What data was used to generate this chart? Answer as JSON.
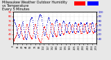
{
  "title_line1": "Milwaukee Weather Outdoor Humidity",
  "title_line2": "vs Temperature",
  "title_line3": "Every 5 Minutes",
  "title_fontsize": 3.5,
  "background_color": "#e8e8e8",
  "plot_bg_color": "#ffffff",
  "temp_color": "#ff0000",
  "humidity_color": "#0000cc",
  "marker_size": 0.6,
  "tick_fontsize": 2.8,
  "grid_color": "#bbbbbb",
  "ylim_temp": [
    20,
    90
  ],
  "ylim_humidity": [
    30,
    100
  ],
  "temp_yticks": [
    30,
    40,
    50,
    60,
    70,
    80,
    90
  ],
  "humidity_yticks": [
    40,
    50,
    60,
    70,
    80,
    90,
    100
  ],
  "legend_temp_color": "#ff0000",
  "legend_humidity_color": "#0000ff",
  "temp_data": [
    25,
    26,
    27,
    28,
    30,
    32,
    34,
    35,
    36,
    38,
    40,
    42,
    44,
    46,
    50,
    54,
    58,
    60,
    62,
    63,
    62,
    60,
    57,
    54,
    51,
    48,
    45,
    42,
    40,
    38,
    36,
    34,
    32,
    30,
    28,
    30,
    33,
    36,
    40,
    44,
    48,
    52,
    56,
    59,
    62,
    63,
    62,
    60,
    57,
    54,
    50,
    47,
    44,
    42,
    40,
    38,
    36,
    35,
    34,
    33,
    32,
    31,
    30,
    32,
    35,
    38,
    42,
    46,
    50,
    54,
    57,
    60,
    62,
    63,
    62,
    60,
    57,
    54,
    50,
    46,
    42,
    38,
    35,
    32,
    30,
    28,
    27,
    26,
    25,
    24,
    23,
    22,
    23,
    25,
    28,
    32,
    36,
    40,
    44,
    48,
    52,
    55,
    57,
    58,
    57,
    55,
    52,
    50,
    47,
    44,
    41,
    39,
    37,
    35,
    33,
    31,
    30,
    30,
    31,
    33,
    36,
    40,
    44,
    48,
    52,
    56,
    59,
    62,
    64,
    65,
    65,
    63,
    60,
    57,
    54,
    51,
    48,
    45,
    43,
    41,
    39,
    38,
    37,
    36,
    35,
    36,
    38,
    41,
    44,
    48,
    52,
    56,
    59,
    62,
    64,
    65,
    65,
    63,
    60,
    57,
    54,
    51,
    48,
    45,
    43,
    42,
    41,
    40,
    40,
    41,
    43,
    46,
    50,
    54,
    57,
    60,
    62,
    63,
    62,
    60,
    57,
    54,
    51,
    48,
    46,
    44,
    43,
    42,
    42,
    43,
    45,
    48,
    52,
    55,
    58,
    60,
    62,
    63,
    62,
    60,
    57,
    54,
    51,
    48,
    46,
    44,
    43,
    42,
    42,
    43,
    45,
    48,
    52,
    55,
    58,
    61,
    63,
    64,
    63,
    61,
    58,
    55,
    52,
    49,
    47,
    45,
    43,
    42,
    42,
    43,
    45,
    48,
    52,
    55,
    58,
    61,
    63,
    64,
    63,
    61,
    58,
    55,
    52,
    49,
    47,
    45,
    44,
    43,
    43,
    44,
    46,
    49,
    53,
    56,
    59,
    62,
    64,
    65,
    64,
    62,
    59,
    56,
    53,
    50,
    48,
    46,
    44,
    43,
    43,
    44,
    46,
    49,
    53,
    56,
    59,
    62,
    64,
    65,
    64,
    62
  ],
  "humidity_data": [
    85,
    84,
    82,
    80,
    78,
    76,
    74,
    72,
    70,
    68,
    65,
    62,
    59,
    56,
    53,
    50,
    48,
    45,
    43,
    44,
    46,
    49,
    52,
    55,
    58,
    62,
    65,
    68,
    71,
    74,
    77,
    79,
    75,
    71,
    66,
    62,
    58,
    54,
    50,
    47,
    44,
    42,
    40,
    38,
    40,
    43,
    46,
    50,
    54,
    58,
    62,
    66,
    70,
    73,
    76,
    79,
    82,
    84,
    85,
    86,
    87,
    88,
    89,
    86,
    82,
    78,
    73,
    68,
    63,
    58,
    53,
    49,
    45,
    42,
    44,
    47,
    51,
    56,
    61,
    66,
    71,
    76,
    80,
    84,
    87,
    89,
    91,
    92,
    93,
    94,
    94,
    95,
    93,
    91,
    88,
    84,
    80,
    75,
    70,
    65,
    60,
    56,
    52,
    49,
    48,
    49,
    51,
    54,
    57,
    61,
    65,
    69,
    73,
    77,
    80,
    84,
    87,
    88,
    88,
    87,
    85,
    82,
    78,
    74,
    70,
    65,
    60,
    56,
    52,
    49,
    46,
    45,
    46,
    48,
    52,
    56,
    60,
    65,
    70,
    74,
    77,
    79,
    81,
    82,
    83,
    82,
    80,
    77,
    73,
    69,
    65,
    61,
    57,
    54,
    51,
    49,
    48,
    48,
    50,
    53,
    57,
    61,
    66,
    70,
    74,
    77,
    79,
    80,
    80,
    79,
    77,
    74,
    70,
    66,
    63,
    60,
    57,
    55,
    54,
    55,
    57,
    60,
    64,
    68,
    71,
    74,
    76,
    77,
    77,
    76,
    73,
    70,
    67,
    63,
    60,
    57,
    55,
    54,
    54,
    55,
    57,
    60,
    64,
    68,
    71,
    74,
    76,
    77,
    76,
    74,
    71,
    68,
    64,
    61,
    58,
    56,
    55,
    55,
    56,
    58,
    61,
    65,
    68,
    72,
    74,
    76,
    77,
    76,
    74,
    71,
    68,
    64,
    61,
    58,
    56,
    55,
    55,
    56,
    58,
    61,
    65,
    68,
    72,
    74,
    76,
    77,
    76,
    74,
    71,
    68,
    64,
    61,
    58,
    56,
    55,
    55,
    56,
    58,
    61,
    65,
    68,
    72,
    74,
    76,
    77,
    76,
    74,
    71,
    68,
    64,
    61,
    58,
    56,
    55,
    55,
    56,
    58,
    61,
    65,
    68
  ],
  "n_points": 280
}
